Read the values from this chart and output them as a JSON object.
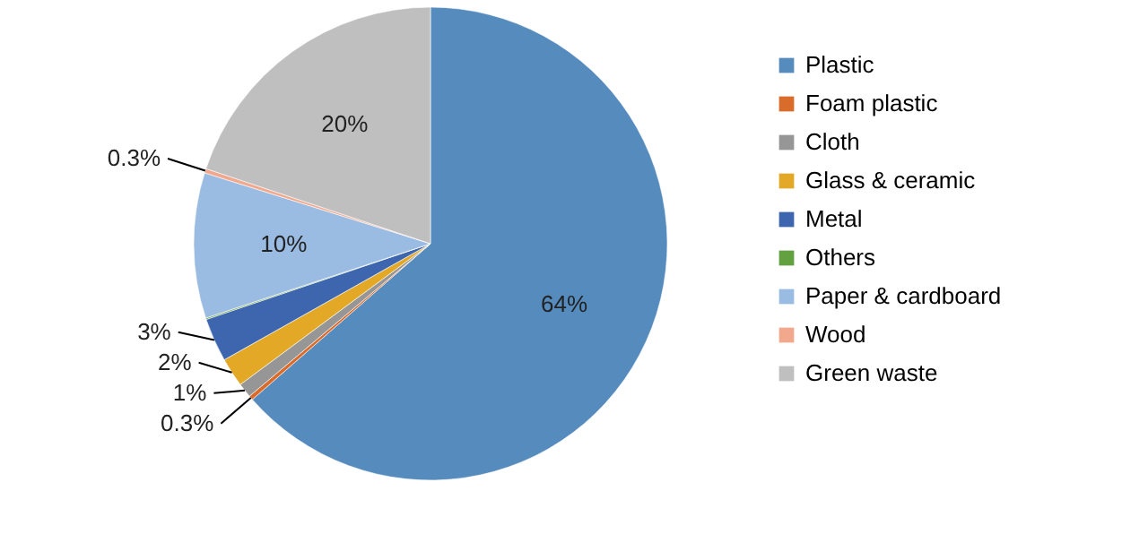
{
  "chart_data": {
    "type": "pie",
    "categories": [
      "Plastic",
      "Foam plastic",
      "Cloth",
      "Glass & ceramic",
      "Metal",
      "Others",
      "Paper & cardboard",
      "Wood",
      "Green waste"
    ],
    "values": [
      64,
      0.3,
      1,
      2,
      3,
      0.1,
      10,
      0.3,
      20
    ],
    "colors": [
      "#558bbd",
      "#d96b2b",
      "#969696",
      "#e2a826",
      "#3d66ae",
      "#62a040",
      "#9abce2",
      "#f1a88c",
      "#bfbfbf"
    ],
    "value_labels": [
      "64%",
      "0.3%",
      "1%",
      "2%",
      "3%",
      null,
      "10%",
      "0.3%",
      "20%"
    ],
    "legend": "right"
  }
}
